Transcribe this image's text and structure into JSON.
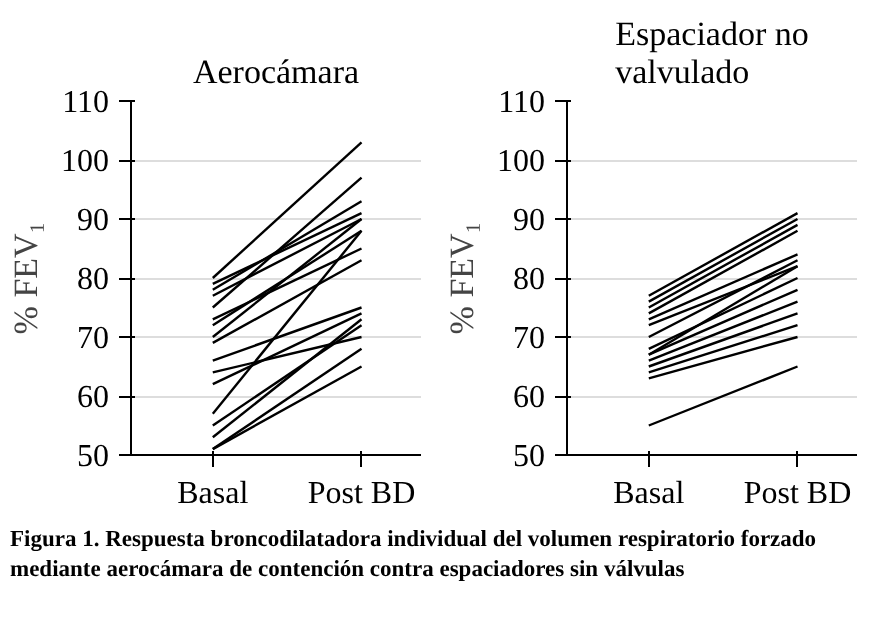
{
  "chart_data": [
    {
      "type": "line",
      "title": "Aerocámara",
      "ylabel": "% FEV₁",
      "categories": [
        "Basal",
        "Post BD"
      ],
      "ylim": [
        50,
        110
      ],
      "yticks": [
        50,
        60,
        70,
        80,
        90,
        100,
        110
      ],
      "grid": "y",
      "marker": "none",
      "line_style": "solid",
      "series": [
        {
          "color": "#000000",
          "values": [
            80,
            103
          ]
        },
        {
          "color": "#000000",
          "values": [
            79,
            91
          ]
        },
        {
          "color": "#000000",
          "values": [
            78,
            93
          ]
        },
        {
          "color": "#000000",
          "values": [
            77,
            90
          ]
        },
        {
          "color": "#000000",
          "values": [
            75,
            97
          ]
        },
        {
          "color": "#000000",
          "values": [
            73,
            85
          ]
        },
        {
          "color": "#000000",
          "values": [
            72,
            88
          ]
        },
        {
          "color": "#000000",
          "values": [
            70,
            90
          ]
        },
        {
          "color": "#000000",
          "values": [
            69,
            83
          ]
        },
        {
          "color": "#000000",
          "values": [
            66,
            75
          ]
        },
        {
          "color": "#000000",
          "values": [
            64,
            70
          ]
        },
        {
          "color": "#000000",
          "values": [
            62,
            74
          ]
        },
        {
          "color": "#000000",
          "values": [
            57,
            88
          ]
        },
        {
          "color": "#000000",
          "values": [
            55,
            72
          ]
        },
        {
          "color": "#000000",
          "values": [
            53,
            73
          ]
        },
        {
          "color": "#000000",
          "values": [
            51,
            68
          ]
        },
        {
          "color": "#000000",
          "values": [
            51,
            65
          ]
        }
      ],
      "annotations": [
        "Figura 1. Respuesta broncodilatadora individual del volumen respiratorio forzado mediante aerocámara de contención contra espaciadores sin válvulas"
      ]
    },
    {
      "type": "line",
      "title": "Espaciador no valvulado",
      "ylabel": "% FEV₁",
      "categories": [
        "Basal",
        "Post BD"
      ],
      "ylim": [
        50,
        110
      ],
      "yticks": [
        50,
        60,
        70,
        80,
        90,
        100,
        110
      ],
      "grid": "y",
      "marker": "none",
      "line_style": "solid",
      "series": [
        {
          "color": "#000000",
          "values": [
            77,
            91
          ]
        },
        {
          "color": "#000000",
          "values": [
            76,
            90
          ]
        },
        {
          "color": "#000000",
          "values": [
            75,
            89
          ]
        },
        {
          "color": "#000000",
          "values": [
            74,
            88
          ]
        },
        {
          "color": "#000000",
          "values": [
            73,
            84
          ]
        },
        {
          "color": "#000000",
          "values": [
            72,
            82
          ]
        },
        {
          "color": "#000000",
          "values": [
            70,
            83
          ]
        },
        {
          "color": "#000000",
          "values": [
            68,
            80
          ]
        },
        {
          "color": "#000000",
          "values": [
            67,
            82
          ]
        },
        {
          "color": "#000000",
          "values": [
            67,
            78
          ]
        },
        {
          "color": "#000000",
          "values": [
            66,
            76
          ]
        },
        {
          "color": "#000000",
          "values": [
            65,
            74
          ]
        },
        {
          "color": "#000000",
          "values": [
            64,
            72
          ]
        },
        {
          "color": "#000000",
          "values": [
            63,
            70
          ]
        },
        {
          "color": "#000000",
          "values": [
            55,
            65
          ]
        }
      ]
    }
  ]
}
